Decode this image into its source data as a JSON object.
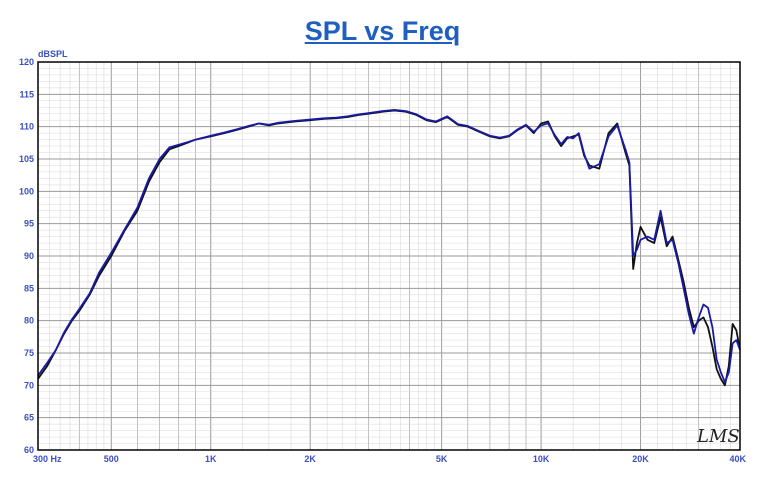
{
  "chart_data": {
    "type": "line",
    "title": "SPL vs Freq",
    "ylabel": "dBSPL",
    "xlabel": "",
    "x_scale": "log",
    "xlim": [
      300,
      40000
    ],
    "ylim": [
      60,
      120
    ],
    "grid": true,
    "x_ticks": [
      {
        "value": 300,
        "label": "300  Hz"
      },
      {
        "value": 500,
        "label": "500"
      },
      {
        "value": 1000,
        "label": "1K"
      },
      {
        "value": 2000,
        "label": "2K"
      },
      {
        "value": 5000,
        "label": "5K"
      },
      {
        "value": 10000,
        "label": "10K"
      },
      {
        "value": 20000,
        "label": "20K"
      },
      {
        "value": 40000,
        "label": "40K"
      }
    ],
    "y_ticks": [
      60,
      65,
      70,
      75,
      80,
      85,
      90,
      95,
      100,
      105,
      110,
      115,
      120
    ],
    "brand_mark": "LMS",
    "colors": {
      "series_a": "#111111",
      "series_b": "#1a1aa8",
      "grid": "#9a9a9a",
      "title": "#1f5fbf",
      "ticks": "#3a4fc0"
    },
    "series": [
      {
        "x": [
          300,
          320,
          340,
          360,
          380,
          400,
          430,
          460,
          500,
          550,
          600,
          650,
          700,
          750,
          800,
          850,
          900,
          1000,
          1100,
          1200,
          1300,
          1400,
          1500,
          1600,
          1800,
          2000,
          2200,
          2400,
          2600,
          2800,
          3000,
          3300,
          3600,
          3900,
          4200,
          4500,
          4800,
          5200,
          5600,
          6000,
          6500,
          7000,
          7500,
          8000,
          8500,
          9000,
          9500,
          10000,
          10500,
          11000,
          11500,
          12000,
          12500,
          13000,
          13500,
          14000,
          15000,
          16000,
          17000,
          18000,
          18500,
          19000,
          19500,
          20000,
          21000,
          22000,
          23000,
          24000,
          25000,
          26000,
          27000,
          28000,
          29000,
          30000,
          31000,
          32000,
          33000,
          34000,
          35000,
          36000,
          37000,
          38000,
          39000,
          40000
        ],
        "y": [
          71,
          73,
          75.5,
          78,
          80,
          81.5,
          84,
          87,
          90,
          94,
          97,
          101.5,
          104.5,
          106.5,
          107,
          107.5,
          108,
          108.5,
          109,
          109.5,
          110,
          110.5,
          110.2,
          110.5,
          110.8,
          111,
          111.2,
          111.3,
          111.5,
          111.8,
          112,
          112.3,
          112.5,
          112.3,
          111.8,
          111,
          110.7,
          111.5,
          110.3,
          110,
          109.2,
          108.5,
          108.2,
          108.5,
          109.5,
          110.2,
          109,
          110.5,
          110.8,
          108.5,
          107,
          108.2,
          108.5,
          108.8,
          105.5,
          104,
          103.5,
          109,
          110.5,
          106,
          104,
          88,
          92,
          94.5,
          92.5,
          92,
          96,
          91.5,
          93,
          89.5,
          86,
          82,
          79,
          80,
          80.5,
          79,
          76,
          72.5,
          71,
          70,
          73,
          79.5,
          78.5,
          75.5
        ]
      },
      {
        "x": [
          300,
          320,
          340,
          360,
          380,
          400,
          430,
          460,
          500,
          550,
          600,
          650,
          700,
          750,
          800,
          850,
          900,
          1000,
          1100,
          1200,
          1300,
          1400,
          1500,
          1600,
          1800,
          2000,
          2200,
          2400,
          2600,
          2800,
          3000,
          3300,
          3600,
          3900,
          4200,
          4500,
          4800,
          5200,
          5600,
          6000,
          6500,
          7000,
          7500,
          8000,
          8500,
          9000,
          9500,
          10000,
          10500,
          11000,
          11500,
          12000,
          12500,
          13000,
          13500,
          14000,
          15000,
          16000,
          17000,
          18000,
          18500,
          19000,
          19500,
          20000,
          21000,
          22000,
          23000,
          24000,
          25000,
          26000,
          27000,
          28000,
          29000,
          30000,
          31000,
          32000,
          33000,
          34000,
          35000,
          36000,
          37000,
          38000,
          39000,
          40000
        ],
        "y": [
          71.5,
          73.5,
          75.5,
          78.2,
          80.2,
          81.8,
          84.2,
          87.5,
          90.5,
          94.2,
          97.5,
          102,
          105,
          106.8,
          107.2,
          107.6,
          108,
          108.6,
          109.1,
          109.6,
          110.1,
          110.5,
          110.3,
          110.6,
          110.9,
          111.1,
          111.3,
          111.4,
          111.6,
          111.9,
          112.1,
          112.4,
          112.6,
          112.4,
          111.9,
          111.1,
          110.8,
          111.6,
          110.4,
          110.1,
          109.3,
          108.6,
          108.3,
          108.6,
          109.6,
          110.3,
          109.2,
          110.2,
          110.5,
          108.7,
          107.3,
          108.4,
          108.2,
          109,
          105.8,
          103.5,
          104.2,
          108.5,
          110.2,
          106.5,
          104.5,
          90,
          91,
          92.5,
          93,
          92.5,
          97,
          92,
          92.5,
          89,
          85,
          81,
          78,
          80.5,
          82.5,
          82,
          79,
          74,
          72,
          70.5,
          72,
          76.5,
          77,
          75.5
        ]
      }
    ]
  }
}
